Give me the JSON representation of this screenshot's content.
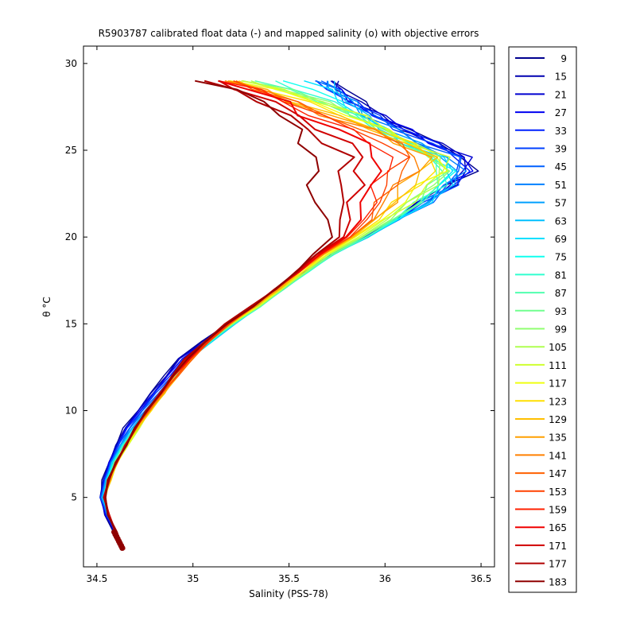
{
  "chart_data": {
    "type": "line",
    "title": "R5903787 calibrated float data (-) and mapped salinity (o) with objective errors",
    "xlabel": "Salinity (PSS-78)",
    "ylabel": "θ °C",
    "xlim": [
      34.43,
      36.57
    ],
    "ylim": [
      1.0,
      31.0
    ],
    "xticks": [
      "34.5",
      "35",
      "35.5",
      "36",
      "36.5"
    ],
    "yticks": [
      "5",
      "10",
      "15",
      "20",
      "25",
      "30"
    ],
    "grid": false,
    "legend_position": "outside-right",
    "colormap": "jet",
    "legend": [
      {
        "label": "9",
        "color": "#00008F"
      },
      {
        "label": "15",
        "color": "#0000B0"
      },
      {
        "label": "21",
        "color": "#0000D0"
      },
      {
        "label": "27",
        "color": "#0000F0"
      },
      {
        "label": "33",
        "color": "#0020FF"
      },
      {
        "label": "39",
        "color": "#0040FF"
      },
      {
        "label": "45",
        "color": "#0060FF"
      },
      {
        "label": "51",
        "color": "#0080FF"
      },
      {
        "label": "57",
        "color": "#00A0FF"
      },
      {
        "label": "63",
        "color": "#00C0FF"
      },
      {
        "label": "69",
        "color": "#00E0FF"
      },
      {
        "label": "75",
        "color": "#10FFEF"
      },
      {
        "label": "81",
        "color": "#30FFCF"
      },
      {
        "label": "87",
        "color": "#50FFAF"
      },
      {
        "label": "93",
        "color": "#70FF8F"
      },
      {
        "label": "99",
        "color": "#90FF70"
      },
      {
        "label": "105",
        "color": "#AFFF50"
      },
      {
        "label": "111",
        "color": "#CFFF30"
      },
      {
        "label": "117",
        "color": "#EFFF10"
      },
      {
        "label": "123",
        "color": "#FFDF00"
      },
      {
        "label": "129",
        "color": "#FFBF00"
      },
      {
        "label": "135",
        "color": "#FFA000"
      },
      {
        "label": "141",
        "color": "#FF8000"
      },
      {
        "label": "147",
        "color": "#FF6000"
      },
      {
        "label": "153",
        "color": "#FF4000"
      },
      {
        "label": "159",
        "color": "#FF2000"
      },
      {
        "label": "165",
        "color": "#F00000"
      },
      {
        "label": "171",
        "color": "#D00000"
      },
      {
        "label": "177",
        "color": "#B00000"
      },
      {
        "label": "183",
        "color": "#8F0000"
      }
    ],
    "series_base": [
      [
        34.64,
        2.0
      ],
      [
        34.6,
        3.0
      ],
      [
        34.56,
        4.0
      ],
      [
        34.54,
        5.0
      ],
      [
        34.56,
        6.0
      ],
      [
        34.6,
        7.0
      ],
      [
        34.65,
        8.0
      ],
      [
        34.7,
        9.0
      ],
      [
        34.76,
        10.0
      ],
      [
        34.82,
        11.0
      ],
      [
        34.88,
        12.0
      ],
      [
        34.94,
        13.0
      ],
      [
        35.04,
        14.0
      ],
      [
        35.16,
        15.0
      ],
      [
        35.3,
        16.0
      ],
      [
        35.43,
        17.0
      ],
      [
        35.56,
        18.0
      ],
      [
        35.7,
        19.0
      ],
      [
        35.88,
        20.0
      ],
      [
        36.05,
        21.0
      ],
      [
        36.2,
        22.0
      ],
      [
        36.33,
        23.0
      ],
      [
        36.4,
        23.8
      ],
      [
        36.35,
        24.6
      ],
      [
        36.15,
        25.4
      ],
      [
        35.95,
        26.2
      ],
      [
        35.78,
        27.0
      ],
      [
        35.62,
        27.8
      ],
      [
        35.5,
        28.5
      ],
      [
        35.4,
        29.0
      ]
    ],
    "series_offsets": [
      {
        "name": "9",
        "ds": [
          0,
          -0.01,
          -0.02,
          -0.02,
          -0.03,
          -0.04,
          -0.05,
          -0.06,
          -0.05,
          -0.04,
          -0.03,
          -0.02,
          0.01,
          0.02,
          0.03,
          0.03,
          0.02,
          0.02,
          0.01,
          0.0,
          -0.01,
          0.0,
          0.05,
          0.08,
          0.12,
          0.16,
          0.2,
          0.25,
          0.3,
          0.35
        ]
      },
      {
        "name": "33",
        "ds": [
          0,
          0.0,
          -0.01,
          -0.02,
          -0.02,
          -0.03,
          -0.04,
          -0.04,
          -0.03,
          -0.02,
          0.0,
          0.01,
          0.03,
          0.04,
          0.04,
          0.04,
          0.03,
          0.03,
          0.02,
          0.02,
          0.01,
          0.02,
          0.02,
          0.05,
          0.1,
          0.15,
          0.18,
          0.2,
          0.22,
          0.25
        ]
      },
      {
        "name": "63",
        "ds": [
          0,
          0.0,
          0.0,
          -0.01,
          -0.01,
          -0.02,
          -0.02,
          -0.01,
          0.0,
          0.02,
          0.04,
          0.05,
          0.06,
          0.06,
          0.05,
          0.04,
          0.04,
          0.03,
          0.03,
          0.02,
          0.02,
          0.0,
          -0.04,
          -0.05,
          -0.02,
          0.05,
          0.1,
          0.2,
          0.25,
          0.3
        ]
      },
      {
        "name": "87",
        "ds": [
          0,
          0.0,
          0.0,
          0.0,
          0.0,
          -0.01,
          -0.01,
          0.0,
          0.01,
          0.02,
          0.03,
          0.04,
          0.05,
          0.05,
          0.05,
          0.04,
          0.04,
          0.03,
          0.02,
          0.0,
          -0.03,
          -0.06,
          -0.1,
          -0.12,
          -0.06,
          0.02,
          0.05,
          0.06,
          0.0,
          -0.1
        ]
      },
      {
        "name": "111",
        "ds": [
          0,
          0.0,
          0.0,
          0.0,
          0.01,
          0.01,
          0.01,
          0.02,
          0.02,
          0.03,
          0.02,
          0.02,
          0.03,
          0.04,
          0.04,
          0.03,
          0.02,
          0.0,
          -0.02,
          -0.05,
          -0.08,
          -0.1,
          -0.08,
          -0.05,
          0.0,
          0.05,
          0.1,
          0.05,
          -0.05,
          -0.15
        ]
      },
      {
        "name": "129",
        "ds": [
          0,
          0.0,
          0.0,
          0.0,
          0.01,
          0.0,
          0.0,
          0.01,
          0.02,
          0.03,
          0.04,
          0.05,
          0.04,
          0.03,
          0.02,
          0.02,
          0.0,
          -0.02,
          -0.05,
          -0.1,
          -0.15,
          -0.2,
          -0.18,
          -0.1,
          -0.05,
          0.0,
          -0.05,
          -0.1,
          -0.15,
          -0.2
        ]
      },
      {
        "name": "147",
        "ds": [
          0,
          0.0,
          0.0,
          0.0,
          0.0,
          0.0,
          0.0,
          0.0,
          0.01,
          0.02,
          0.04,
          0.06,
          0.05,
          0.03,
          0.02,
          0.0,
          -0.01,
          -0.03,
          -0.06,
          -0.12,
          -0.22,
          -0.3,
          -0.3,
          -0.2,
          -0.1,
          -0.05,
          -0.1,
          -0.1,
          -0.15,
          -0.2
        ]
      },
      {
        "name": "165",
        "ds": [
          0,
          0.0,
          0.0,
          0.0,
          0.0,
          0.0,
          0.0,
          0.0,
          0.0,
          0.01,
          0.02,
          0.04,
          0.03,
          0.02,
          0.01,
          0.0,
          -0.01,
          -0.04,
          -0.08,
          -0.18,
          -0.3,
          -0.4,
          -0.45,
          -0.38,
          -0.25,
          -0.2,
          -0.2,
          -0.15,
          -0.2,
          -0.25
        ]
      },
      {
        "name": "177",
        "ds": [
          0,
          0.0,
          0.0,
          0.0,
          0.0,
          0.0,
          0.0,
          0.0,
          0.0,
          0.01,
          0.01,
          0.02,
          0.02,
          0.01,
          0.0,
          0.0,
          -0.02,
          -0.06,
          -0.12,
          -0.28,
          -0.45,
          -0.55,
          -0.62,
          -0.55,
          -0.45,
          -0.35,
          -0.3,
          -0.25,
          -0.3,
          -0.35
        ]
      },
      {
        "name": "183",
        "ds": [
          0,
          0.0,
          0.0,
          0.0,
          0.0,
          0.0,
          0.0,
          0.0,
          0.0,
          0.01,
          0.02,
          0.03,
          0.03,
          0.02,
          0.01,
          0.0,
          -0.02,
          -0.08,
          -0.15,
          -0.35,
          -0.58,
          -0.7,
          -0.78,
          -0.7,
          -0.58,
          -0.42,
          -0.3,
          -0.25,
          -0.3,
          -0.35
        ]
      }
    ]
  }
}
